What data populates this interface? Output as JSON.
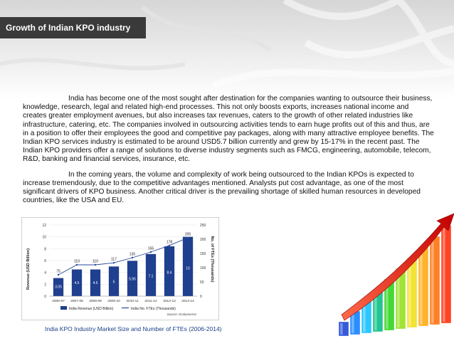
{
  "slide": {
    "title": "Growth of Indian KPO industry",
    "paragraph1": "India has become one of the most sought after destination for the companies wanting to outsource their  business, knowledge, research, legal and related high-end processes. This not only boosts exports, increases national income and creates greater employment avenues, but also increases tax revenues, caters  to the growth of  other  related   industries like infrastructure, catering, etc. The companies involved in outsourcing activities tends to earn huge profits out of this and thus, are in a position to offer their employees the good and competitive pay packages, along with many attractive employee benefits. The Indian KPO services industry is estimated to be around USD5.7 billion currently and grew by 15-17% in the recent past. The Indian KPO providers offer a range of solutions to diverse industry segments such as FMCG, engineering, automobile, telecom, R&D, banking and financial services, insurance, etc.",
    "paragraph2": "In the coming years, the volume and complexity of work being outsourced to the Indian KPOs is expected to increase tremendously, due to the competitive advantages mentioned. Analysts put cost advantage, as one of the most significant drivers of KPO business. Another critical driver is the prevailing shortage of skilled human resources in developed countries, like the USA and EU.",
    "caption": "India KPO Industry Market Size and Number of FTEs (2006-2014)"
  },
  "colors": {
    "title_bg": "#3a3a3a",
    "bar": "#1f3f8f",
    "line": "#2a4a9a",
    "caption": "#1a3e86"
  },
  "chart_data": {
    "type": "bar",
    "categories": [
      "2006-07",
      "2007-08",
      "2008-09",
      "2009-10",
      "2010-11",
      "2011-12",
      "2012-13",
      "2013-14"
    ],
    "series": [
      {
        "name": "India Revenue (USD Billion)",
        "type": "bar",
        "axis": "left",
        "values": [
          3.05,
          4.5,
          4.5,
          5,
          5.95,
          7.1,
          8.4,
          10
        ]
      },
      {
        "name": "India No. FTEs (Thousands)",
        "type": "line",
        "axis": "right",
        "values": [
          75,
          110,
          110,
          117,
          135,
          155,
          178,
          205
        ]
      }
    ],
    "ylabel": "Revenue (USD Billion)",
    "y2label": "No. of FTEs (Thousands)",
    "ylim": [
      0,
      12
    ],
    "yticks": [
      0,
      2,
      4,
      6,
      8,
      10,
      12
    ],
    "y2lim": [
      0,
      250
    ],
    "y2ticks": [
      0,
      50,
      100,
      150,
      200,
      250
    ],
    "legend_position": "bottom",
    "source": "Source: Evalueserve"
  }
}
